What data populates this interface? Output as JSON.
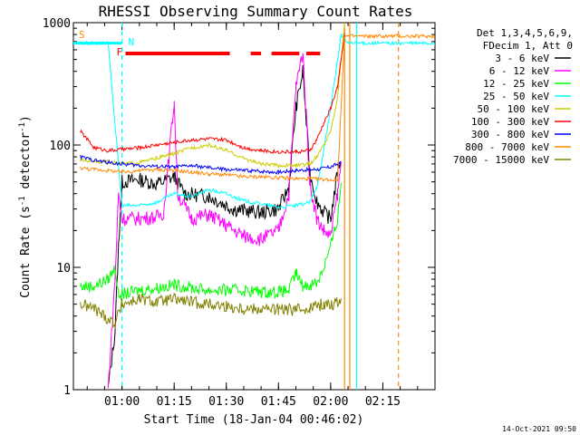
{
  "chart_data": {
    "type": "line",
    "title": "RHESSI Observing Summary Count Rates",
    "xlabel": "Start Time (18-Jan-04 00:46:02)",
    "ylabel_pre": "Count Rate (s",
    "ylabel_sup": "-1",
    "ylabel_mid": " detector",
    "ylabel_sup2": "-1",
    "ylabel_post": ")",
    "yscale": "log",
    "ylim": [
      1,
      1000
    ],
    "xlim_minutes": [
      46.03,
      150
    ],
    "x_ticks": [
      {
        "minute": 60,
        "label": "01:00"
      },
      {
        "minute": 75,
        "label": "01:15"
      },
      {
        "minute": 90,
        "label": "01:30"
      },
      {
        "minute": 105,
        "label": "01:45"
      },
      {
        "minute": 120,
        "label": "02:00"
      },
      {
        "minute": 135,
        "label": "02:15"
      }
    ],
    "y_ticks": [
      {
        "value": 1,
        "label": "1"
      },
      {
        "value": 10,
        "label": "10"
      },
      {
        "value": 100,
        "label": "100"
      },
      {
        "value": 1000,
        "label": "1000"
      }
    ],
    "legend_header": [
      "Det 1,3,4,5,6,9,",
      "FDecim 1, Att 0"
    ],
    "legend_position": "top-right",
    "series": [
      {
        "name": "3 - 6 keV",
        "color": "#000000",
        "points": [
          [
            56,
            1
          ],
          [
            58,
            3
          ],
          [
            59,
            15
          ],
          [
            60,
            50
          ],
          [
            65,
            52
          ],
          [
            70,
            48
          ],
          [
            75,
            55
          ],
          [
            78,
            40
          ],
          [
            85,
            38
          ],
          [
            92,
            30
          ],
          [
            100,
            28
          ],
          [
            105,
            30
          ],
          [
            108,
            45
          ],
          [
            110,
            200
          ],
          [
            112,
            400
          ],
          [
            114,
            60
          ],
          [
            116,
            35
          ],
          [
            118,
            28
          ],
          [
            120,
            25
          ],
          [
            122,
            60
          ],
          [
            123,
            80
          ]
        ]
      },
      {
        "name": "6 - 12 keV",
        "color": "#ff00ff",
        "points": [
          [
            56,
            1
          ],
          [
            58,
            8
          ],
          [
            59,
            40
          ],
          [
            60,
            25
          ],
          [
            65,
            25
          ],
          [
            70,
            26
          ],
          [
            72,
            28
          ],
          [
            75,
            230
          ],
          [
            76,
            40
          ],
          [
            80,
            25
          ],
          [
            85,
            27
          ],
          [
            90,
            22
          ],
          [
            95,
            18
          ],
          [
            100,
            17
          ],
          [
            105,
            20
          ],
          [
            108,
            40
          ],
          [
            110,
            300
          ],
          [
            112,
            580
          ],
          [
            114,
            50
          ],
          [
            116,
            25
          ],
          [
            118,
            20
          ],
          [
            120,
            18
          ],
          [
            122,
            40
          ],
          [
            123,
            70
          ]
        ]
      },
      {
        "name": "12 - 25 keV",
        "color": "#00ff00",
        "points": [
          [
            48,
            7
          ],
          [
            52,
            7
          ],
          [
            56,
            8
          ],
          [
            58,
            10
          ],
          [
            59,
            6
          ],
          [
            60,
            6
          ],
          [
            65,
            6.5
          ],
          [
            70,
            6.8
          ],
          [
            75,
            7.2
          ],
          [
            80,
            6.8
          ],
          [
            85,
            6.5
          ],
          [
            90,
            6.5
          ],
          [
            95,
            6.5
          ],
          [
            100,
            6.3
          ],
          [
            105,
            6.3
          ],
          [
            108,
            6.5
          ],
          [
            110,
            9
          ],
          [
            112,
            7
          ],
          [
            116,
            7.5
          ],
          [
            118,
            10
          ],
          [
            120,
            15
          ],
          [
            122,
            25
          ],
          [
            123,
            50
          ]
        ]
      },
      {
        "name": "25 - 50 keV",
        "color": "#00ffff",
        "points": [
          [
            48,
            680
          ],
          [
            56,
            680
          ],
          [
            60,
            32
          ],
          [
            65,
            32
          ],
          [
            70,
            34
          ],
          [
            75,
            40
          ],
          [
            80,
            38
          ],
          [
            85,
            43
          ],
          [
            90,
            40
          ],
          [
            95,
            35
          ],
          [
            100,
            33
          ],
          [
            105,
            31
          ],
          [
            110,
            32
          ],
          [
            114,
            34
          ],
          [
            116,
            45
          ],
          [
            118,
            90
          ],
          [
            120,
            200
          ],
          [
            122,
            500
          ],
          [
            123,
            800
          ],
          [
            125,
            680
          ],
          [
            150,
            680
          ]
        ]
      },
      {
        "name": "50 - 100 keV",
        "color": "#cccc00",
        "points": [
          [
            48,
            75
          ],
          [
            56,
            73
          ],
          [
            60,
            70
          ],
          [
            65,
            72
          ],
          [
            70,
            78
          ],
          [
            75,
            85
          ],
          [
            80,
            95
          ],
          [
            85,
            100
          ],
          [
            90,
            90
          ],
          [
            95,
            78
          ],
          [
            100,
            70
          ],
          [
            105,
            68
          ],
          [
            110,
            68
          ],
          [
            114,
            70
          ],
          [
            116,
            80
          ],
          [
            118,
            100
          ],
          [
            120,
            130
          ],
          [
            122,
            250
          ],
          [
            123,
            500
          ],
          [
            124,
            1000
          ]
        ]
      },
      {
        "name": "100 - 300 keV",
        "color": "#ff0000",
        "points": [
          [
            48,
            130
          ],
          [
            52,
            95
          ],
          [
            56,
            90
          ],
          [
            60,
            92
          ],
          [
            65,
            95
          ],
          [
            70,
            100
          ],
          [
            75,
            105
          ],
          [
            80,
            110
          ],
          [
            85,
            112
          ],
          [
            90,
            110
          ],
          [
            95,
            95
          ],
          [
            100,
            90
          ],
          [
            105,
            88
          ],
          [
            110,
            88
          ],
          [
            114,
            90
          ],
          [
            116,
            110
          ],
          [
            118,
            150
          ],
          [
            120,
            200
          ],
          [
            122,
            300
          ],
          [
            123,
            500
          ],
          [
            124,
            800
          ]
        ]
      },
      {
        "name": "300 - 800 keV",
        "color": "#0000ff",
        "points": [
          [
            48,
            80
          ],
          [
            52,
            75
          ],
          [
            56,
            72
          ],
          [
            60,
            70
          ],
          [
            65,
            68
          ],
          [
            70,
            67
          ],
          [
            75,
            66
          ],
          [
            80,
            68
          ],
          [
            85,
            65
          ],
          [
            90,
            63
          ],
          [
            95,
            62
          ],
          [
            100,
            61
          ],
          [
            105,
            60
          ],
          [
            110,
            62
          ],
          [
            114,
            63
          ],
          [
            116,
            63
          ],
          [
            120,
            66
          ],
          [
            122,
            70
          ],
          [
            123,
            72
          ]
        ]
      },
      {
        "name": "800 - 7000 keV",
        "color": "#ff8800",
        "points": [
          [
            48,
            65
          ],
          [
            52,
            63
          ],
          [
            56,
            62
          ],
          [
            60,
            60
          ],
          [
            65,
            62
          ],
          [
            70,
            63
          ],
          [
            75,
            62
          ],
          [
            80,
            60
          ],
          [
            85,
            58
          ],
          [
            90,
            57
          ],
          [
            95,
            55
          ],
          [
            100,
            55
          ],
          [
            105,
            54
          ],
          [
            110,
            53
          ],
          [
            114,
            53
          ],
          [
            120,
            52
          ],
          [
            122,
            52
          ],
          [
            124,
            775
          ],
          [
            150,
            775
          ]
        ]
      },
      {
        "name": "7000 - 15000 keV",
        "color": "#808000",
        "points": [
          [
            48,
            5
          ],
          [
            52,
            4.6
          ],
          [
            56,
            3.8
          ],
          [
            58,
            3.5
          ],
          [
            60,
            5
          ],
          [
            65,
            5.5
          ],
          [
            70,
            5.2
          ],
          [
            75,
            5.5
          ],
          [
            80,
            5.2
          ],
          [
            85,
            5
          ],
          [
            90,
            4.8
          ],
          [
            95,
            4.6
          ],
          [
            100,
            4.6
          ],
          [
            105,
            4.5
          ],
          [
            110,
            4.5
          ],
          [
            114,
            4.7
          ],
          [
            118,
            5
          ],
          [
            121,
            5
          ],
          [
            123,
            5.5
          ]
        ]
      }
    ],
    "flag_labels": {
      "s": "S",
      "n": "N",
      "f": "F"
    },
    "flags": {
      "saa": {
        "label": "S",
        "color": "#ff8800",
        "minute": 47
      },
      "night": {
        "label": "N",
        "color": "#00ffff",
        "minute": 61
      },
      "flare": {
        "label": "F",
        "color": "#ff0000",
        "segments": [
          [
            61,
            91
          ],
          [
            97,
            100
          ],
          [
            103,
            111
          ],
          [
            113,
            117
          ]
        ]
      }
    },
    "vertical_markers": [
      {
        "minute": 60,
        "color": "#00ffff",
        "style": "dashed"
      },
      {
        "minute": 124,
        "color": "#ff8800",
        "style": "solid"
      },
      {
        "minute": 125.5,
        "color": "#ff8800",
        "style": "solid"
      },
      {
        "minute": 127.5,
        "color": "#00ffff",
        "style": "solid"
      },
      {
        "minute": 139.5,
        "color": "#ff8800",
        "style": "dashed"
      }
    ]
  },
  "footer": {
    "timestamp": "14-Oct-2021 09:50"
  }
}
